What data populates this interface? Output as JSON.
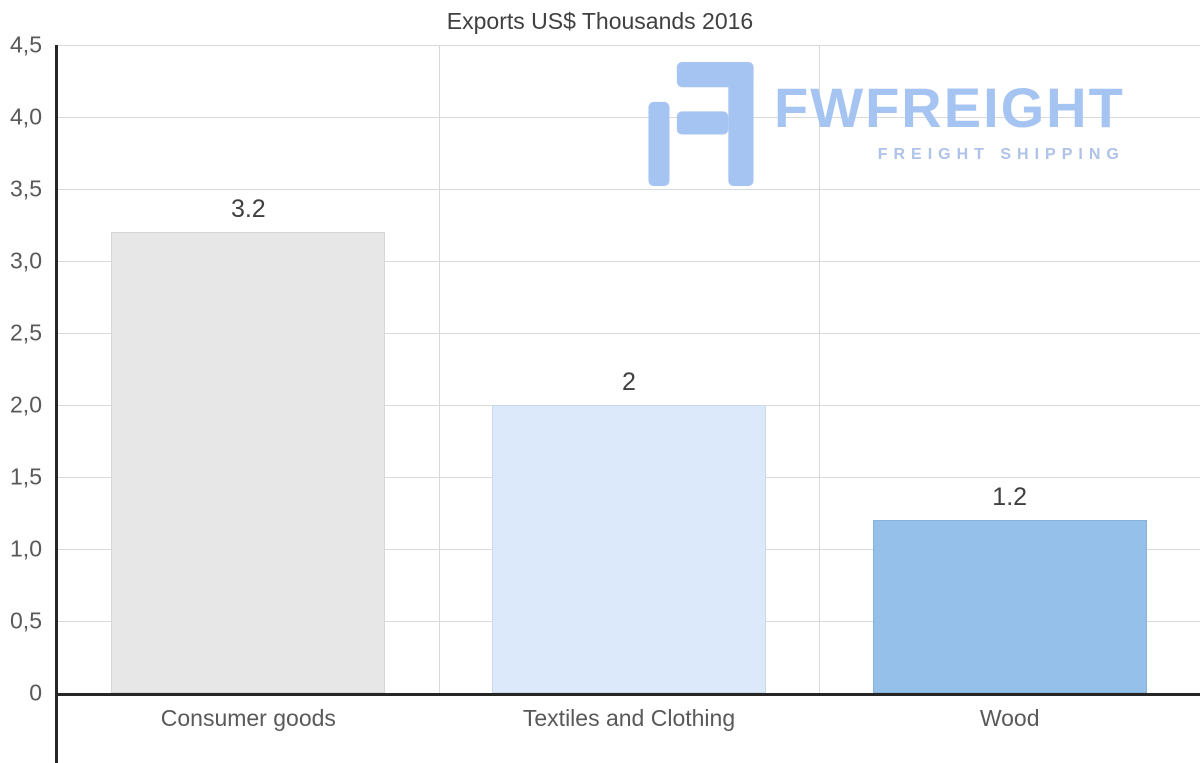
{
  "chart_data": {
    "type": "bar",
    "title": "Exports US$ Thousands 2016",
    "categories": [
      "Consumer goods",
      "Textiles and Clothing",
      "Wood"
    ],
    "values": [
      3.2,
      2,
      1.2
    ],
    "value_labels": [
      "3.2",
      "2",
      "1.2"
    ],
    "ylim": [
      0,
      4.5
    ],
    "ytick_step": 0.5,
    "ytick_labels": [
      "0",
      "0,5",
      "1,0",
      "1,5",
      "2,0",
      "2,5",
      "3,0",
      "3,5",
      "4,0",
      "4,5"
    ],
    "bar_colors": [
      "#e7e7e7",
      "#dbe9fb",
      "#94c0ea"
    ],
    "grid": true,
    "grid_color": "#d9d9d9",
    "axis_color": "#262626",
    "legend": "none",
    "xlabel": "",
    "ylabel": ""
  },
  "watermark": {
    "brand": "FWFREIGHT",
    "tagline": "FREIGHT SHIPPING",
    "brand_color": "#a6c4f2",
    "tagline_color": "#afc2e8"
  }
}
